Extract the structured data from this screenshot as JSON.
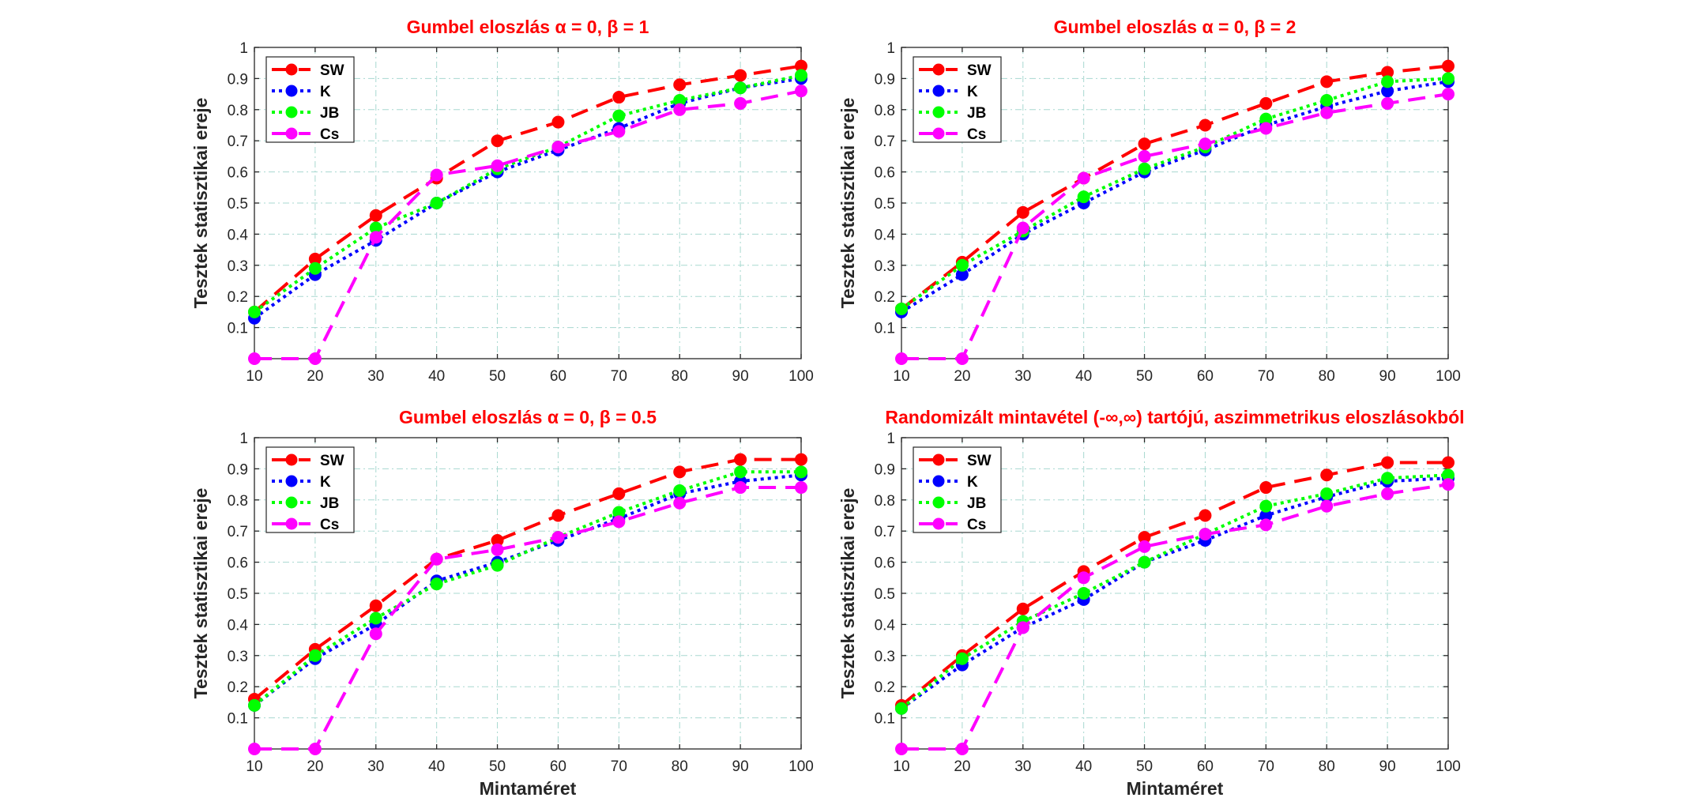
{
  "colors": {
    "SW": "#ff0000",
    "K": "#0000ff",
    "JB": "#00ff00",
    "Cs": "#ff00ff",
    "title": "#ff0000",
    "grid": "#a8d8d0",
    "axis": "#262626"
  },
  "axis_text": {
    "ylabel": "Tesztek statisztikai ereje",
    "xlabel": "Mintaméret"
  },
  "chart_data": [
    {
      "type": "line",
      "title": "Gumbel eloszlás α = 0, β = 1",
      "xlabel": "",
      "ylabel": "Tesztek statisztikai ereje",
      "x": [
        10,
        20,
        30,
        40,
        50,
        60,
        70,
        80,
        90,
        100
      ],
      "xlim": [
        10,
        100
      ],
      "ylim": [
        0,
        1
      ],
      "xticks": [
        "10",
        "20",
        "30",
        "40",
        "50",
        "60",
        "70",
        "80",
        "90",
        "100"
      ],
      "yticks": [
        "0.1",
        "0.2",
        "0.3",
        "0.4",
        "0.5",
        "0.6",
        "0.7",
        "0.8",
        "0.9",
        "1"
      ],
      "grid": true,
      "legend": "top-left",
      "series": [
        {
          "name": "SW",
          "values": [
            0.15,
            0.32,
            0.46,
            0.58,
            0.7,
            0.76,
            0.84,
            0.88,
            0.91,
            0.94
          ]
        },
        {
          "name": "K",
          "values": [
            0.13,
            0.27,
            0.38,
            0.5,
            0.6,
            0.67,
            0.74,
            0.82,
            0.87,
            0.9
          ]
        },
        {
          "name": "JB",
          "values": [
            0.15,
            0.29,
            0.42,
            0.5,
            0.61,
            0.68,
            0.78,
            0.83,
            0.87,
            0.91
          ]
        },
        {
          "name": "Cs",
          "values": [
            0.0,
            0.0,
            0.39,
            0.59,
            0.62,
            0.68,
            0.73,
            0.8,
            0.82,
            0.86
          ]
        }
      ]
    },
    {
      "type": "line",
      "title": "Gumbel eloszlás α = 0, β = 2",
      "xlabel": "",
      "ylabel": "Tesztek statisztikai ereje",
      "x": [
        10,
        20,
        30,
        40,
        50,
        60,
        70,
        80,
        90,
        100
      ],
      "xlim": [
        10,
        100
      ],
      "ylim": [
        0,
        1
      ],
      "xticks": [
        "10",
        "20",
        "30",
        "40",
        "50",
        "60",
        "70",
        "80",
        "90",
        "100"
      ],
      "yticks": [
        "0.1",
        "0.2",
        "0.3",
        "0.4",
        "0.5",
        "0.6",
        "0.7",
        "0.8",
        "0.9",
        "1"
      ],
      "grid": true,
      "legend": "top-left",
      "series": [
        {
          "name": "SW",
          "values": [
            0.16,
            0.31,
            0.47,
            0.58,
            0.69,
            0.75,
            0.82,
            0.89,
            0.92,
            0.94
          ]
        },
        {
          "name": "K",
          "values": [
            0.15,
            0.27,
            0.4,
            0.5,
            0.6,
            0.67,
            0.75,
            0.81,
            0.86,
            0.89
          ]
        },
        {
          "name": "JB",
          "values": [
            0.16,
            0.3,
            0.41,
            0.52,
            0.61,
            0.68,
            0.77,
            0.83,
            0.89,
            0.9
          ]
        },
        {
          "name": "Cs",
          "values": [
            0.0,
            0.0,
            0.42,
            0.58,
            0.65,
            0.69,
            0.74,
            0.79,
            0.82,
            0.85
          ]
        }
      ]
    },
    {
      "type": "line",
      "title": "Gumbel eloszlás α = 0, β = 0.5",
      "xlabel": "Mintaméret",
      "ylabel": "Tesztek statisztikai ereje",
      "x": [
        10,
        20,
        30,
        40,
        50,
        60,
        70,
        80,
        90,
        100
      ],
      "xlim": [
        10,
        100
      ],
      "ylim": [
        0,
        1
      ],
      "xticks": [
        "10",
        "20",
        "30",
        "40",
        "50",
        "60",
        "70",
        "80",
        "90",
        "100"
      ],
      "yticks": [
        "0.1",
        "0.2",
        "0.3",
        "0.4",
        "0.5",
        "0.6",
        "0.7",
        "0.8",
        "0.9",
        "1"
      ],
      "grid": true,
      "legend": "top-left",
      "series": [
        {
          "name": "SW",
          "values": [
            0.16,
            0.32,
            0.46,
            0.61,
            0.67,
            0.75,
            0.82,
            0.89,
            0.93,
            0.93
          ]
        },
        {
          "name": "K",
          "values": [
            0.14,
            0.29,
            0.4,
            0.54,
            0.6,
            0.67,
            0.74,
            0.82,
            0.86,
            0.88
          ]
        },
        {
          "name": "JB",
          "values": [
            0.14,
            0.3,
            0.42,
            0.53,
            0.59,
            0.68,
            0.76,
            0.83,
            0.89,
            0.89
          ]
        },
        {
          "name": "Cs",
          "values": [
            0.0,
            0.0,
            0.37,
            0.61,
            0.64,
            0.68,
            0.73,
            0.79,
            0.84,
            0.84
          ]
        }
      ]
    },
    {
      "type": "line",
      "title": "Randomizált mintavétel (-∞,∞) tartójú, aszimmetrikus eloszlásokból",
      "xlabel": "Mintaméret",
      "ylabel": "Tesztek statisztikai ereje",
      "x": [
        10,
        20,
        30,
        40,
        50,
        60,
        70,
        80,
        90,
        100
      ],
      "xlim": [
        10,
        100
      ],
      "ylim": [
        0,
        1
      ],
      "xticks": [
        "10",
        "20",
        "30",
        "40",
        "50",
        "60",
        "70",
        "80",
        "90",
        "100"
      ],
      "yticks": [
        "0.1",
        "0.2",
        "0.3",
        "0.4",
        "0.5",
        "0.6",
        "0.7",
        "0.8",
        "0.9",
        "1"
      ],
      "grid": true,
      "legend": "top-left",
      "series": [
        {
          "name": "SW",
          "values": [
            0.14,
            0.3,
            0.45,
            0.57,
            0.68,
            0.75,
            0.84,
            0.88,
            0.92,
            0.92
          ]
        },
        {
          "name": "K",
          "values": [
            0.13,
            0.27,
            0.39,
            0.48,
            0.6,
            0.67,
            0.75,
            0.81,
            0.86,
            0.87
          ]
        },
        {
          "name": "JB",
          "values": [
            0.13,
            0.29,
            0.41,
            0.5,
            0.6,
            0.69,
            0.78,
            0.82,
            0.87,
            0.88
          ]
        },
        {
          "name": "Cs",
          "values": [
            0.0,
            0.0,
            0.39,
            0.55,
            0.65,
            0.69,
            0.72,
            0.78,
            0.82,
            0.85
          ]
        }
      ]
    }
  ]
}
